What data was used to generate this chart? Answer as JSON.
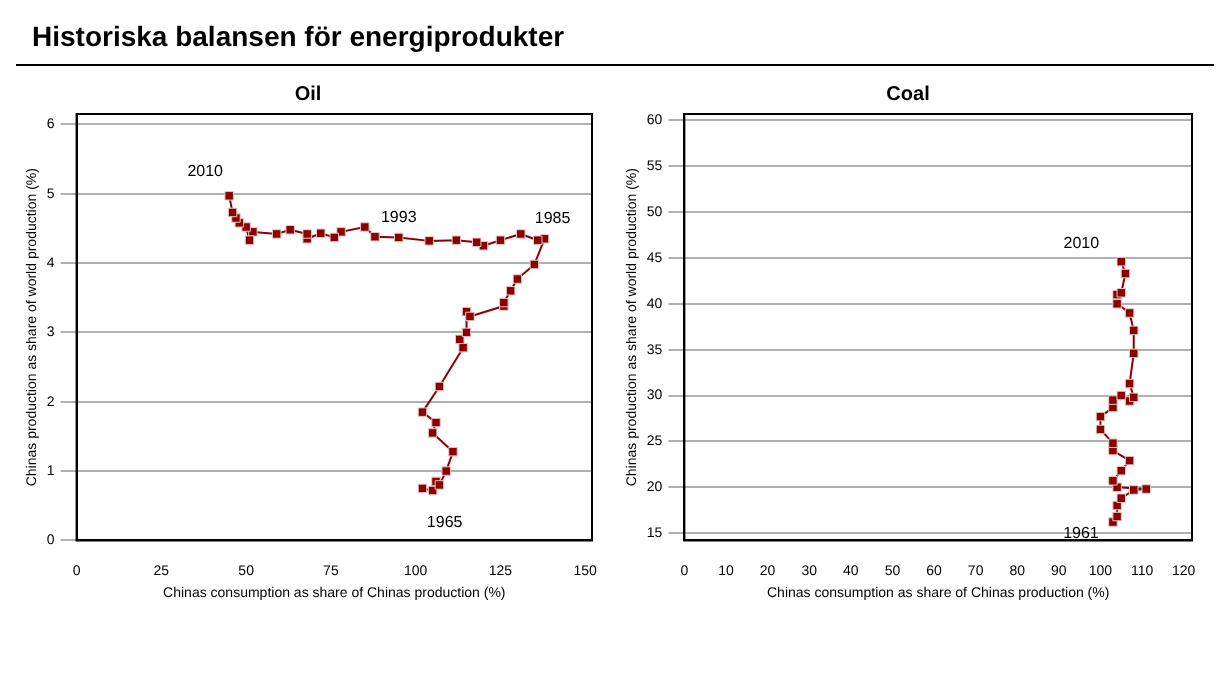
{
  "chart_data": [
    {
      "type": "line",
      "title": "Historiska balansen för energiprodukter",
      "subtitle": "Oil",
      "xlabel": "Chinas consumption as share of Chinas production (%)",
      "ylabel": "Chinas production as share of world production (%)",
      "series": [
        {
          "color": "#8b0000",
          "x": [
            102,
            105,
            106,
            107,
            109,
            111,
            105,
            106,
            102,
            107,
            114,
            113,
            115,
            115,
            116,
            126,
            126,
            128,
            130,
            135,
            138,
            136,
            131,
            125,
            120,
            118,
            112,
            104,
            95,
            88,
            85,
            78,
            76,
            72,
            68,
            68,
            63,
            59,
            52,
            51,
            50,
            48,
            47,
            46,
            45
          ],
          "values": [
            0.75,
            0.72,
            0.85,
            0.8,
            1.0,
            1.28,
            1.55,
            1.7,
            1.85,
            2.22,
            2.78,
            2.9,
            3.0,
            3.3,
            3.23,
            3.38,
            3.43,
            3.6,
            3.77,
            3.98,
            4.35,
            4.33,
            4.42,
            4.33,
            4.25,
            4.3,
            4.33,
            4.32,
            4.37,
            4.38,
            4.52,
            4.45,
            4.37,
            4.43,
            4.35,
            4.42,
            4.48,
            4.42,
            4.45,
            4.33,
            4.52,
            4.58,
            4.65,
            4.73,
            4.97
          ]
        }
      ],
      "xlim": [
        0,
        152
      ],
      "xticks": [
        0,
        25,
        50,
        75,
        100,
        125,
        150
      ],
      "ylim": [
        0,
        6.15
      ],
      "yticks": [
        0,
        1,
        2,
        3,
        4,
        5,
        6
      ],
      "grid": "y",
      "marker": "square",
      "line_style": "solid",
      "annotations": [
        {
          "text": "2010",
          "x": 45,
          "y": 4.97
        },
        {
          "text": "1993",
          "x": 95,
          "y": 4.37
        },
        {
          "text": "1985",
          "x": 138,
          "y": 4.35
        },
        {
          "text": "1965",
          "x": 105,
          "y": 0.72
        }
      ]
    },
    {
      "type": "line",
      "title": "Coal",
      "xlabel": "Chinas consumption as share of Chinas production (%)",
      "ylabel": "Chinas production as share of world production (%)",
      "series": [
        {
          "color": "#8b0000",
          "x": [
            103,
            104,
            104,
            105,
            108,
            111,
            104,
            103,
            105,
            107,
            103,
            103,
            100,
            100,
            103,
            103,
            105,
            107,
            108,
            107,
            108,
            108,
            107,
            104,
            104,
            105,
            106,
            105
          ],
          "values": [
            16.2,
            16.8,
            18,
            18.8,
            19.7,
            19.8,
            20,
            20.7,
            21.8,
            22.9,
            24,
            24.8,
            26.3,
            27.7,
            28.7,
            29.5,
            30,
            29.4,
            29.8,
            31.3,
            34.6,
            37.1,
            39,
            40,
            41,
            41.2,
            43.3,
            44.6
          ]
        }
      ],
      "xlim": [
        0,
        122
      ],
      "xticks": [
        0,
        10,
        20,
        30,
        40,
        50,
        60,
        70,
        80,
        90,
        100,
        110,
        120
      ],
      "ylim": [
        14.2,
        60.7
      ],
      "yticks": [
        15,
        20,
        25,
        30,
        35,
        40,
        45,
        50,
        55,
        60
      ],
      "grid": "y",
      "marker": "square",
      "line_style": "solid",
      "annotations": [
        {
          "text": "2010",
          "x": 105,
          "y": 44.6
        },
        {
          "text": "1961",
          "x": 103,
          "y": 16.2
        }
      ]
    }
  ]
}
